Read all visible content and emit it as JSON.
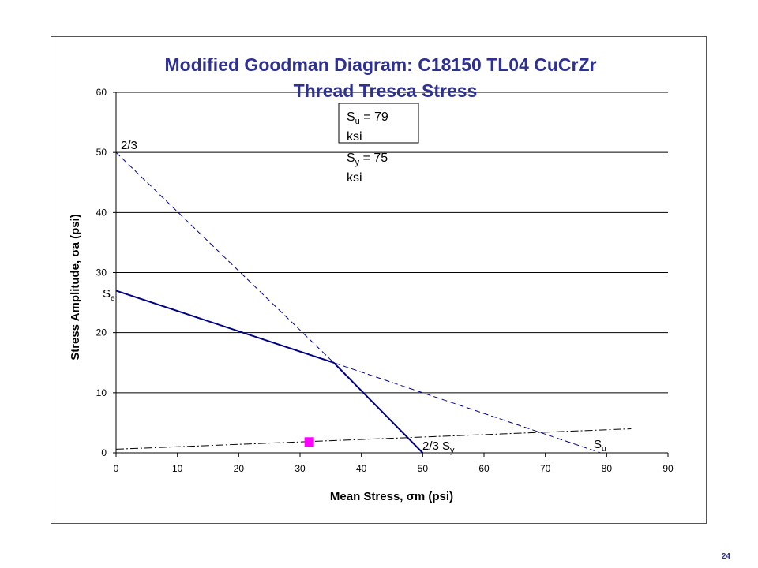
{
  "page_number": "24",
  "colors": {
    "title": "#2e3192",
    "line": "#000080",
    "marker": "#ff00ff",
    "grid": "#000000"
  },
  "chart_data": {
    "type": "line",
    "title_line1": "Modified Goodman Diagram: C18150 TL04 CuCrZr",
    "title_line2": "Thread Tresca Stress",
    "xlabel": "Mean Stress, σm (psi)",
    "ylabel": "Stress Amplitude, σa (psi)",
    "xlim": [
      0,
      90
    ],
    "ylim": [
      0,
      60
    ],
    "xticks": [
      0,
      10,
      20,
      30,
      40,
      50,
      60,
      70,
      80,
      90
    ],
    "yticks": [
      0,
      10,
      20,
      30,
      40,
      50,
      60
    ],
    "xtick_labels": [
      "0",
      "10",
      "20",
      "30",
      "40",
      "50",
      "60",
      "70",
      "80",
      "90"
    ],
    "ytick_labels": [
      "0",
      "10",
      "20",
      "30",
      "40",
      "50",
      "60"
    ],
    "grid": "horizontal",
    "series": [
      {
        "style": "solid",
        "points": [
          [
            0,
            27
          ],
          [
            35.5,
            15
          ],
          [
            50,
            0
          ]
        ]
      },
      {
        "style": "dashed",
        "points": [
          [
            0,
            50
          ],
          [
            35.5,
            15
          ],
          [
            79,
            0
          ]
        ]
      },
      {
        "style": "dash-dot",
        "points": [
          [
            0,
            0.6
          ],
          [
            84,
            4
          ]
        ]
      },
      {
        "style": "marker",
        "points": [
          [
            31.5,
            1.8
          ]
        ]
      }
    ],
    "legend": {
      "line1": "S",
      "sub1": "u",
      "rest1": " = 79",
      "line2": "ksi",
      "line3": "S",
      "sub3": "y",
      "rest3": " = 75",
      "line4": "ksi"
    },
    "annotations": {
      "se_main": "S",
      "se_sub": "e",
      "two_thirds": "2/3",
      "two_thirds_sy_main": "2/3 S",
      "two_thirds_sy_sub": "y",
      "su_main": "S",
      "su_sub": "u"
    }
  }
}
